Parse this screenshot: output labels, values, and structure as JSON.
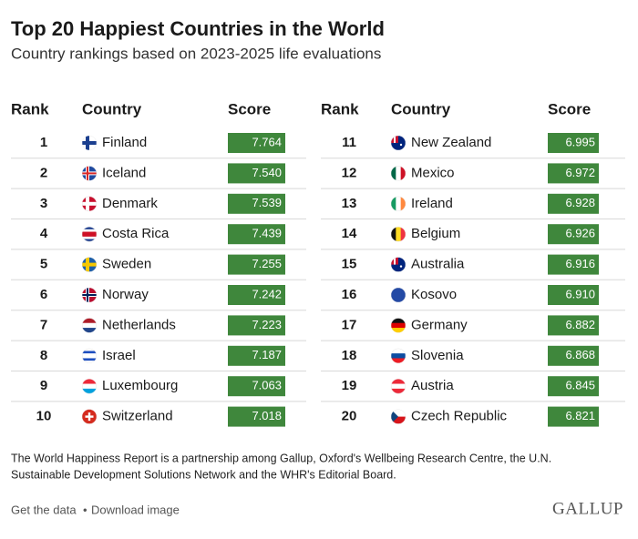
{
  "header": {
    "title": "Top 20 Happiest Countries in the World",
    "subtitle": "Country rankings based on 2023-2025 life evaluations"
  },
  "table": {
    "columns": [
      "Rank",
      "Country",
      "Score"
    ],
    "rows": [
      [
        1,
        "Finland",
        "7.764"
      ],
      [
        2,
        "Iceland",
        "7.540"
      ],
      [
        3,
        "Denmark",
        "7.539"
      ],
      [
        4,
        "Costa Rica",
        "7.439"
      ],
      [
        5,
        "Sweden",
        "7.255"
      ],
      [
        6,
        "Norway",
        "7.242"
      ],
      [
        7,
        "Netherlands",
        "7.223"
      ],
      [
        8,
        "Israel",
        "7.187"
      ],
      [
        9,
        "Luxembourg",
        "7.063"
      ],
      [
        10,
        "Switzerland",
        "7.018"
      ],
      [
        11,
        "New Zealand",
        "6.995"
      ],
      [
        12,
        "Mexico",
        "6.972"
      ],
      [
        13,
        "Ireland",
        "6.928"
      ],
      [
        14,
        "Belgium",
        "6.926"
      ],
      [
        15,
        "Australia",
        "6.916"
      ],
      [
        16,
        "Kosovo",
        "6.910"
      ],
      [
        17,
        "Germany",
        "6.882"
      ],
      [
        18,
        "Slovenia",
        "6.868"
      ],
      [
        19,
        "Austria",
        "6.845"
      ],
      [
        20,
        "Czech Republic",
        "6.821"
      ]
    ]
  },
  "footer": {
    "note_line1": "The World Happiness Report is a partnership among Gallup, Oxford's Wellbeing Research Centre, the U.N.",
    "note_line2": "Sustainable Development Solutions Network and the WHR's Editorial Board.",
    "link_data": "Get the data",
    "separator": "•",
    "link_image": "Download image",
    "logo": "GALLUP"
  }
}
